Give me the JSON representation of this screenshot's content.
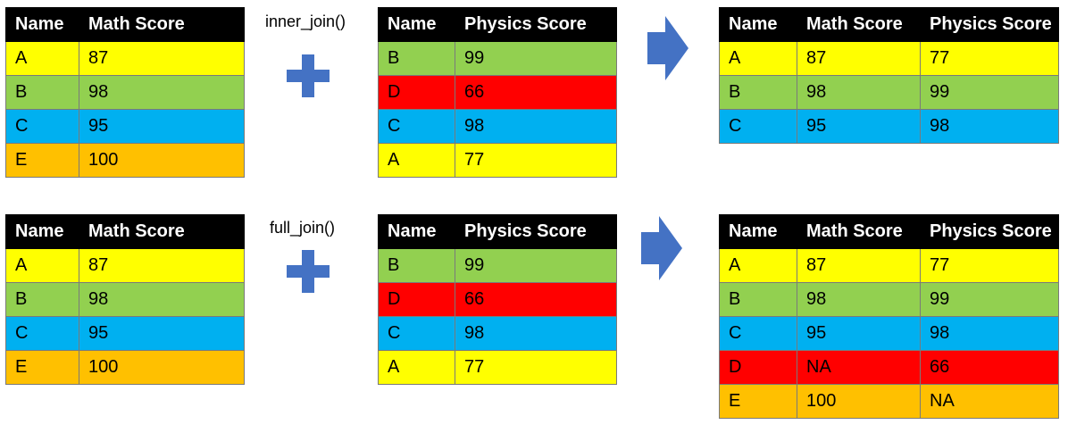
{
  "colors": {
    "header": "#000000",
    "A": "#ffff00",
    "B": "#92d050",
    "C": "#00b0f0",
    "D": "#ff0000",
    "E": "#ffc000",
    "icon": "#4472c4"
  },
  "icons": {
    "plus": "plus-icon",
    "arrow": "right-arrow-icon"
  },
  "inner": {
    "label": "inner_join()",
    "math": {
      "headers": [
        "Name",
        "Math Score"
      ],
      "rows": [
        {
          "name": "A",
          "v1": "87",
          "color": "#ffff00"
        },
        {
          "name": "B",
          "v1": "98",
          "color": "#92d050"
        },
        {
          "name": "C",
          "v1": "95",
          "color": "#00b0f0"
        },
        {
          "name": "E",
          "v1": "100",
          "color": "#ffc000"
        }
      ]
    },
    "physics": {
      "headers": [
        "Name",
        "Physics Score"
      ],
      "rows": [
        {
          "name": "B",
          "v1": "99",
          "color": "#92d050"
        },
        {
          "name": "D",
          "v1": "66",
          "color": "#ff0000"
        },
        {
          "name": "C",
          "v1": "98",
          "color": "#00b0f0"
        },
        {
          "name": "A",
          "v1": "77",
          "color": "#ffff00"
        }
      ]
    },
    "result": {
      "headers": [
        "Name",
        "Math Score",
        "Physics Score"
      ],
      "rows": [
        {
          "name": "A",
          "v1": "87",
          "v2": "77",
          "color": "#ffff00"
        },
        {
          "name": "B",
          "v1": "98",
          "v2": "99",
          "color": "#92d050"
        },
        {
          "name": "C",
          "v1": "95",
          "v2": "98",
          "color": "#00b0f0"
        }
      ]
    }
  },
  "full": {
    "label": "full_join()",
    "math": {
      "headers": [
        "Name",
        "Math Score"
      ],
      "rows": [
        {
          "name": "A",
          "v1": "87",
          "color": "#ffff00"
        },
        {
          "name": "B",
          "v1": "98",
          "color": "#92d050"
        },
        {
          "name": "C",
          "v1": "95",
          "color": "#00b0f0"
        },
        {
          "name": "E",
          "v1": "100",
          "color": "#ffc000"
        }
      ]
    },
    "physics": {
      "headers": [
        "Name",
        "Physics Score"
      ],
      "rows": [
        {
          "name": "B",
          "v1": "99",
          "color": "#92d050"
        },
        {
          "name": "D",
          "v1": "66",
          "color": "#ff0000"
        },
        {
          "name": "C",
          "v1": "98",
          "color": "#00b0f0"
        },
        {
          "name": "A",
          "v1": "77",
          "color": "#ffff00"
        }
      ]
    },
    "result": {
      "headers": [
        "Name",
        "Math Score",
        "Physics Score"
      ],
      "rows": [
        {
          "name": "A",
          "v1": "87",
          "v2": "77",
          "color": "#ffff00"
        },
        {
          "name": "B",
          "v1": "98",
          "v2": "99",
          "color": "#92d050"
        },
        {
          "name": "C",
          "v1": "95",
          "v2": "98",
          "color": "#00b0f0"
        },
        {
          "name": "D",
          "v1": "NA",
          "v2": "66",
          "color": "#ff0000"
        },
        {
          "name": "E",
          "v1": "100",
          "v2": "NA",
          "color": "#ffc000"
        }
      ]
    }
  }
}
